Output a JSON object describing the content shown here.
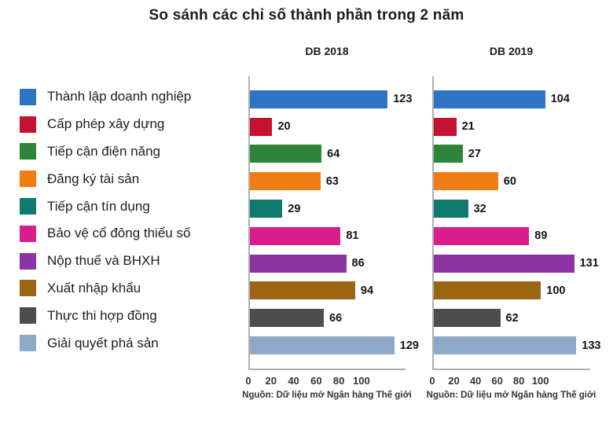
{
  "title": "So sánh các chỉ số thành phần trong 2 năm",
  "source_note": "Nguồn: Dữ liệu mở Ngân hàng Thế giới",
  "chart_data": {
    "type": "bar",
    "orientation": "horizontal",
    "title": "So sánh các chỉ số thành phần trong 2 năm",
    "categories": [
      "Thành lập doanh nghiệp",
      "Cấp phép xây dựng",
      "Tiếp cận điện năng",
      "Đăng ký tài sản",
      "Tiếp cận tín dụng",
      "Bảo vệ cổ đông thiểu số",
      "Nộp thuế và BHXH",
      "Xuất nhập khẩu",
      "Thực thi hợp đồng",
      "Giải quyết phá sản"
    ],
    "category_colors": [
      "#2e74c0",
      "#c41230",
      "#2e8539",
      "#ef7d13",
      "#107a6f",
      "#d81e8c",
      "#8c34a4",
      "#9c6514",
      "#4d4d4d",
      "#8ea8c8"
    ],
    "series": [
      {
        "name": "DB 2018",
        "values": [
          123,
          20,
          64,
          63,
          29,
          81,
          86,
          94,
          66,
          129
        ],
        "xlim": [
          0,
          139
        ]
      },
      {
        "name": "DB 2019",
        "values": [
          104,
          21,
          27,
          60,
          32,
          89,
          131,
          100,
          62,
          133
        ],
        "xlim": [
          0,
          146
        ]
      }
    ],
    "x_ticks": [
      0,
      20,
      40,
      60,
      80,
      100
    ],
    "grid": false,
    "legend_position": "left",
    "value_labels": true,
    "source_note": "Nguồn: Dữ liệu mở Ngân hàng Thế giới",
    "axis_color": "#b0b0b0",
    "text_color": "#1c1c1c"
  }
}
